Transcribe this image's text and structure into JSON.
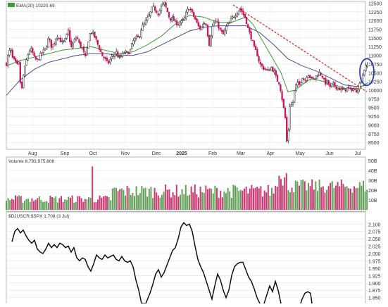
{
  "chart_data": [
    {
      "type": "candlestick",
      "ema_label": "EMA(20) 10220.69",
      "x_labels": [
        "Aug",
        "Sep",
        "Oct",
        "Nov",
        "Dec",
        "2025",
        "Feb",
        "Mar",
        "Apr",
        "May",
        "Jun",
        "Jul"
      ],
      "y_ticks": [
        8500,
        8750,
        9000,
        9250,
        9500,
        9750,
        10000,
        10250,
        10500,
        10750,
        11000,
        11250,
        11500,
        11750,
        12000,
        12250,
        12500
      ],
      "ylim": [
        8300,
        12550
      ],
      "grid": true,
      "close_points": [
        [
          0,
          10760
        ],
        [
          3,
          11050
        ],
        [
          6,
          11200
        ],
        [
          9,
          10900
        ],
        [
          12,
          10820
        ],
        [
          15,
          10700
        ],
        [
          18,
          10780
        ],
        [
          21,
          9850
        ],
        [
          24,
          10400
        ],
        [
          27,
          10700
        ],
        [
          30,
          11000
        ],
        [
          33,
          11150
        ],
        [
          36,
          11150
        ],
        [
          40,
          10900
        ],
        [
          44,
          10850
        ],
        [
          48,
          11000
        ],
        [
          52,
          11100
        ],
        [
          56,
          11200
        ],
        [
          60,
          11500
        ],
        [
          64,
          11250
        ],
        [
          68,
          11350
        ],
        [
          72,
          11600
        ],
        [
          76,
          11450
        ],
        [
          80,
          11350
        ],
        [
          84,
          11450
        ],
        [
          88,
          11700
        ],
        [
          92,
          11200
        ],
        [
          96,
          11400
        ],
        [
          100,
          11550
        ],
        [
          104,
          11300
        ],
        [
          108,
          11200
        ],
        [
          112,
          10900
        ],
        [
          116,
          11400
        ],
        [
          120,
          11700
        ],
        [
          124,
          11600
        ],
        [
          128,
          11400
        ],
        [
          132,
          11200
        ],
        [
          136,
          11000
        ],
        [
          140,
          10900
        ],
        [
          144,
          10750
        ],
        [
          148,
          10900
        ],
        [
          152,
          11000
        ],
        [
          156,
          11100
        ],
        [
          160,
          10900
        ],
        [
          164,
          11000
        ],
        [
          168,
          11100
        ],
        [
          172,
          11050
        ],
        [
          176,
          11150
        ],
        [
          180,
          11400
        ],
        [
          184,
          11500
        ],
        [
          188,
          11500
        ],
        [
          192,
          11800
        ],
        [
          196,
          11900
        ],
        [
          200,
          12050
        ],
        [
          204,
          12200
        ],
        [
          208,
          12400
        ],
        [
          212,
          12300
        ],
        [
          216,
          12200
        ],
        [
          220,
          12400
        ],
        [
          224,
          12500
        ],
        [
          228,
          12300
        ],
        [
          232,
          12050
        ],
        [
          236,
          12050
        ],
        [
          240,
          11950
        ],
        [
          244,
          11900
        ],
        [
          248,
          11950
        ],
        [
          252,
          12000
        ],
        [
          256,
          12250
        ],
        [
          260,
          12380
        ],
        [
          264,
          12200
        ],
        [
          268,
          12050
        ],
        [
          272,
          11850
        ],
        [
          276,
          11750
        ],
        [
          280,
          11950
        ],
        [
          284,
          11900
        ],
        [
          288,
          11300
        ],
        [
          292,
          11800
        ],
        [
          296,
          12000
        ],
        [
          300,
          11900
        ],
        [
          304,
          11700
        ],
        [
          308,
          11600
        ],
        [
          312,
          11800
        ],
        [
          316,
          11900
        ],
        [
          320,
          12050
        ],
        [
          324,
          12150
        ],
        [
          328,
          12250
        ],
        [
          332,
          12350
        ],
        [
          336,
          12200
        ],
        [
          340,
          12050
        ],
        [
          344,
          11700
        ],
        [
          348,
          11500
        ],
        [
          352,
          11200
        ],
        [
          356,
          11050
        ],
        [
          360,
          10750
        ],
        [
          364,
          10650
        ],
        [
          368,
          10600
        ],
        [
          372,
          10550
        ],
        [
          376,
          10650
        ],
        [
          380,
          10550
        ],
        [
          384,
          10300
        ],
        [
          388,
          10200
        ],
        [
          392,
          9700
        ],
        [
          396,
          9200
        ],
        [
          398,
          8500
        ],
        [
          400,
          8700
        ],
        [
          402,
          9500
        ],
        [
          404,
          9700
        ],
        [
          406,
          9400
        ],
        [
          408,
          9900
        ],
        [
          410,
          10000
        ],
        [
          412,
          10200
        ],
        [
          416,
          10150
        ],
        [
          420,
          10400
        ],
        [
          424,
          10250
        ],
        [
          428,
          10500
        ],
        [
          432,
          10350
        ],
        [
          436,
          10300
        ],
        [
          440,
          10400
        ],
        [
          444,
          10500
        ],
        [
          448,
          10450
        ],
        [
          452,
          10200
        ],
        [
          456,
          10250
        ],
        [
          460,
          10050
        ],
        [
          464,
          10150
        ],
        [
          468,
          10100
        ],
        [
          472,
          10050
        ],
        [
          476,
          10000
        ],
        [
          480,
          10000
        ],
        [
          484,
          10050
        ],
        [
          488,
          10000
        ],
        [
          492,
          10050
        ],
        [
          496,
          9950
        ],
        [
          500,
          10100
        ],
        [
          504,
          10300
        ],
        [
          508,
          10600
        ],
        [
          512,
          10700
        ],
        [
          514,
          10750
        ]
      ],
      "ema_points": [
        [
          0,
          10700
        ],
        [
          20,
          10850
        ],
        [
          40,
          10950
        ],
        [
          60,
          11050
        ],
        [
          80,
          11150
        ],
        [
          100,
          11200
        ],
        [
          120,
          11250
        ],
        [
          140,
          11150
        ],
        [
          160,
          11050
        ],
        [
          180,
          11100
        ],
        [
          200,
          11300
        ],
        [
          220,
          11550
        ],
        [
          240,
          11900
        ],
        [
          260,
          12150
        ],
        [
          280,
          12100
        ],
        [
          300,
          11950
        ],
        [
          320,
          11950
        ],
        [
          340,
          12100
        ],
        [
          350,
          11900
        ],
        [
          360,
          11550
        ],
        [
          370,
          11200
        ],
        [
          380,
          10850
        ],
        [
          390,
          10500
        ],
        [
          400,
          9950
        ],
        [
          410,
          10000
        ],
        [
          420,
          10150
        ],
        [
          430,
          10300
        ],
        [
          440,
          10300
        ],
        [
          460,
          10200
        ],
        [
          480,
          10050
        ],
        [
          500,
          10050
        ],
        [
          514,
          10220.69
        ]
      ],
      "sma_points": [
        [
          0,
          9850
        ],
        [
          20,
          10300
        ],
        [
          40,
          10600
        ],
        [
          60,
          10800
        ],
        [
          80,
          10900
        ],
        [
          100,
          11000
        ],
        [
          120,
          11050
        ],
        [
          140,
          11050
        ],
        [
          160,
          11000
        ],
        [
          180,
          11000
        ],
        [
          200,
          11100
        ],
        [
          220,
          11300
        ],
        [
          240,
          11500
        ],
        [
          260,
          11700
        ],
        [
          280,
          11800
        ],
        [
          300,
          11850
        ],
        [
          320,
          11850
        ],
        [
          340,
          11850
        ],
        [
          360,
          11650
        ],
        [
          380,
          11300
        ],
        [
          400,
          10900
        ],
        [
          420,
          10700
        ],
        [
          440,
          10550
        ],
        [
          460,
          10350
        ],
        [
          480,
          10150
        ],
        [
          500,
          10100
        ],
        [
          514,
          10150
        ]
      ],
      "trendline": [
        [
          322,
          12450
        ],
        [
          512,
          9950
        ]
      ],
      "highlight": {
        "x": 512,
        "y": 10520,
        "rx": 10,
        "ry": 19
      }
    },
    {
      "type": "bar",
      "label": "Volume 8,793,975,808",
      "y_ticks": [
        "50B",
        "40B",
        "30B",
        "20B",
        "10B"
      ],
      "ylim": [
        0,
        50
      ],
      "max_spike": {
        "x": 122,
        "value": 44
      }
    },
    {
      "type": "line",
      "label": "$DJUSCR:$SPX 1.708 (3 Jul)",
      "y_ticks": [
        2.1,
        2.075,
        2.05,
        2.025,
        2.0,
        1.975,
        1.95,
        1.925,
        1.9,
        1.875,
        1.85
      ],
      "ylim": [
        1.83,
        2.115
      ],
      "values": [
        [
          8,
          2.04
        ],
        [
          12,
          2.075
        ],
        [
          16,
          2.085
        ],
        [
          20,
          2.07
        ],
        [
          24,
          2.08
        ],
        [
          28,
          2.06
        ],
        [
          32,
          2.045
        ],
        [
          36,
          2.035
        ],
        [
          40,
          2.045
        ],
        [
          44,
          2.015
        ],
        [
          48,
          2.005
        ],
        [
          52,
          2.0
        ],
        [
          56,
          2.015
        ],
        [
          60,
          2.035
        ],
        [
          64,
          2.02
        ],
        [
          68,
          2.03
        ],
        [
          72,
          2.02
        ],
        [
          76,
          2.035
        ],
        [
          80,
          2.03
        ],
        [
          84,
          2.02
        ],
        [
          88,
          2.025
        ],
        [
          92,
          2.005
        ],
        [
          96,
          2.02
        ],
        [
          100,
          1.985
        ],
        [
          104,
          1.975
        ],
        [
          108,
          1.985
        ],
        [
          112,
          1.98
        ],
        [
          116,
          1.955
        ],
        [
          120,
          1.94
        ],
        [
          124,
          1.965
        ],
        [
          128,
          1.995
        ],
        [
          132,
          1.985
        ],
        [
          136,
          1.98
        ],
        [
          140,
          1.995
        ],
        [
          144,
          1.985
        ],
        [
          148,
          1.99
        ],
        [
          152,
          1.995
        ],
        [
          156,
          1.98
        ],
        [
          160,
          1.975
        ],
        [
          164,
          1.99
        ],
        [
          168,
          1.975
        ],
        [
          172,
          1.97
        ],
        [
          176,
          1.975
        ],
        [
          180,
          1.955
        ],
        [
          184,
          1.91
        ],
        [
          188,
          1.875
        ],
        [
          192,
          1.83
        ],
        [
          198,
          1.83
        ],
        [
          204,
          1.865
        ],
        [
          208,
          1.895
        ],
        [
          212,
          1.93
        ],
        [
          216,
          1.945
        ],
        [
          220,
          1.92
        ],
        [
          224,
          1.935
        ],
        [
          228,
          1.96
        ],
        [
          232,
          1.985
        ],
        [
          236,
          2.01
        ],
        [
          240,
          2.02
        ],
        [
          244,
          2.05
        ],
        [
          248,
          2.09
        ],
        [
          252,
          2.105
        ],
        [
          256,
          2.095
        ],
        [
          260,
          2.1
        ],
        [
          264,
          2.075
        ],
        [
          268,
          2.025
        ],
        [
          272,
          1.98
        ],
        [
          276,
          1.955
        ],
        [
          280,
          1.935
        ],
        [
          284,
          1.905
        ],
        [
          288,
          1.875
        ],
        [
          292,
          1.845
        ],
        [
          296,
          1.89
        ],
        [
          300,
          1.93
        ],
        [
          304,
          1.91
        ],
        [
          308,
          1.875
        ],
        [
          312,
          1.85
        ],
        [
          316,
          1.875
        ],
        [
          320,
          1.925
        ],
        [
          324,
          1.955
        ],
        [
          328,
          1.965
        ],
        [
          332,
          1.97
        ],
        [
          336,
          1.97
        ],
        [
          340,
          1.945
        ],
        [
          344,
          1.92
        ],
        [
          348,
          1.905
        ],
        [
          352,
          1.88
        ],
        [
          356,
          1.85
        ],
        [
          360,
          1.83
        ]
      ],
      "values_2": [
        [
          366,
          1.83
        ],
        [
          370,
          1.86
        ],
        [
          374,
          1.89
        ],
        [
          378,
          1.87
        ],
        [
          382,
          1.905
        ],
        [
          386,
          1.875
        ],
        [
          390,
          1.83
        ]
      ],
      "values_3": [
        [
          418,
          1.83
        ],
        [
          420,
          1.845
        ],
        [
          424,
          1.865
        ],
        [
          428,
          1.87
        ],
        [
          432,
          1.865
        ],
        [
          434,
          1.83
        ]
      ]
    }
  ],
  "colors": {
    "up": "#4a8f3f",
    "down": "#c2185b",
    "ema": "#3e9a3a",
    "sma": "#4a5096",
    "trendline": "#e53935",
    "highlight": "#2f3fa5",
    "ratio_line": "#111111"
  }
}
